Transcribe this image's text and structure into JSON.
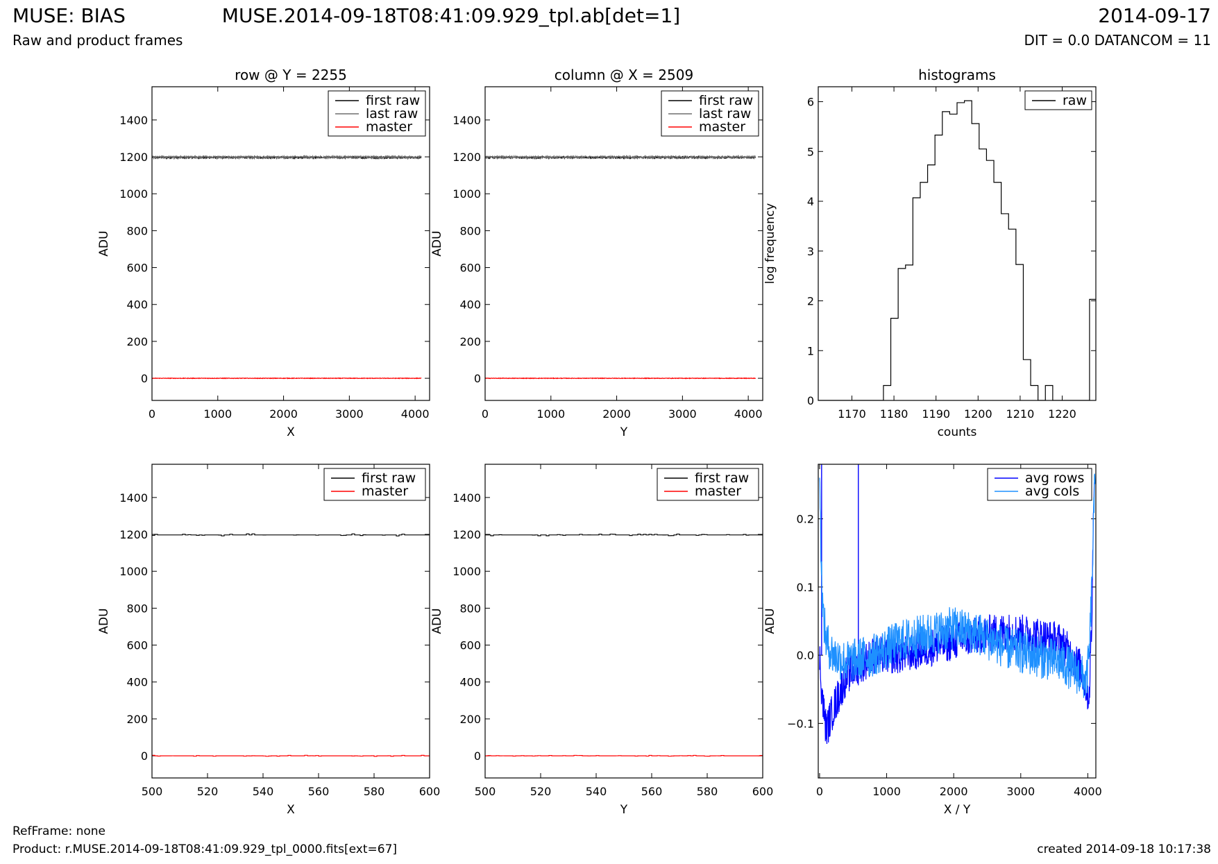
{
  "header": {
    "title": "MUSE: BIAS",
    "subtitle": "Raw and product frames",
    "center": "MUSE.2014-09-18T08:41:09.929_tpl.ab[det=1]",
    "date": "2014-09-17",
    "dit": "DIT = 0.0 DATANCOM = 11"
  },
  "footer": {
    "refframe": "RefFrame: none",
    "product": "Product: r.MUSE.2014-09-18T08:41:09.929_tpl_0000.fits[ext=67]",
    "created": "created 2014-09-18 10:17:38"
  },
  "colors": {
    "first_raw": "#000000",
    "last_raw": "#6e6e6e",
    "master": "#ff0000",
    "avg_rows": "#0000ff",
    "avg_cols": "#1e90ff"
  },
  "chart_data": [
    {
      "type": "line",
      "title": "row @ Y = 2255",
      "xlabel": "X",
      "ylabel": "ADU",
      "xlim": [
        0,
        4220
      ],
      "ylim": [
        -120,
        1580
      ],
      "xticks": [
        0,
        1000,
        2000,
        3000,
        4000
      ],
      "yticks": [
        0,
        200,
        400,
        600,
        800,
        1000,
        1200,
        1400
      ],
      "legend": "top-right",
      "series": [
        {
          "name": "first raw",
          "x": [
            0,
            4096
          ],
          "y": [
            1197,
            1197
          ],
          "color": "#000000",
          "noise": 5
        },
        {
          "name": "last raw",
          "x": [
            0,
            4096
          ],
          "y": [
            1199,
            1199
          ],
          "color": "#6e6e6e",
          "noise": 5
        },
        {
          "name": "master",
          "x": [
            0,
            4096
          ],
          "y": [
            0,
            0
          ],
          "color": "#ff0000",
          "noise": 1.5
        }
      ]
    },
    {
      "type": "line",
      "title": "column @ X = 2509",
      "xlabel": "Y",
      "ylabel": "ADU",
      "xlim": [
        0,
        4220
      ],
      "ylim": [
        -120,
        1580
      ],
      "xticks": [
        0,
        1000,
        2000,
        3000,
        4000
      ],
      "yticks": [
        0,
        200,
        400,
        600,
        800,
        1000,
        1200,
        1400
      ],
      "legend": "top-right",
      "series": [
        {
          "name": "first raw",
          "x": [
            0,
            4112
          ],
          "y": [
            1197,
            1197
          ],
          "color": "#000000",
          "noise": 5
        },
        {
          "name": "last raw",
          "x": [
            0,
            4112
          ],
          "y": [
            1199,
            1199
          ],
          "color": "#6e6e6e",
          "noise": 5
        },
        {
          "name": "master",
          "x": [
            0,
            4112
          ],
          "y": [
            0,
            0
          ],
          "color": "#ff0000",
          "noise": 1.5
        }
      ]
    },
    {
      "type": "step",
      "title": "histograms",
      "xlabel": "counts",
      "ylabel": "log frequency",
      "xlim": [
        1162,
        1228
      ],
      "ylim": [
        0,
        6.3
      ],
      "xticks": [
        1170,
        1180,
        1190,
        1200,
        1210,
        1220
      ],
      "yticks": [
        0,
        1,
        2,
        3,
        4,
        5,
        6
      ],
      "legend": "top-right",
      "series": [
        {
          "name": "raw",
          "color": "#000000",
          "edges": [
            1177.5,
            1179.25,
            1181,
            1182.75,
            1184.5,
            1186.25,
            1188,
            1189.75,
            1191.5,
            1193.25,
            1195,
            1196.75,
            1198.5,
            1200.25,
            1202,
            1203.75,
            1205.5,
            1207.25,
            1209,
            1210.75,
            1212.5,
            1214.25,
            1216,
            1217.75,
            1219.5,
            1221.25,
            1223,
            1224.75,
            1226.5,
            1228.25
          ],
          "values": [
            0.3,
            1.65,
            2.65,
            2.72,
            4.07,
            4.38,
            4.73,
            5.33,
            5.8,
            5.75,
            5.98,
            6.02,
            5.56,
            5.05,
            4.82,
            4.38,
            3.75,
            3.44,
            2.73,
            0.82,
            0.3,
            0,
            0.3,
            0,
            0,
            0,
            0,
            0,
            2.03
          ]
        }
      ]
    },
    {
      "type": "line",
      "xlabel": "X",
      "ylabel": "ADU",
      "xlim": [
        500,
        600
      ],
      "ylim": [
        -120,
        1580
      ],
      "xticks": [
        500,
        520,
        540,
        560,
        580,
        600
      ],
      "yticks": [
        0,
        200,
        400,
        600,
        800,
        1000,
        1200,
        1400
      ],
      "legend": "top-right",
      "series": [
        {
          "name": "first raw",
          "x": [
            500,
            600
          ],
          "y": [
            1197,
            1197
          ],
          "color": "#000000",
          "noise": 6,
          "stepped": true
        },
        {
          "name": "master",
          "x": [
            500,
            600
          ],
          "y": [
            0,
            0
          ],
          "color": "#ff0000",
          "noise": 3,
          "stepped": true
        }
      ]
    },
    {
      "type": "line",
      "xlabel": "Y",
      "ylabel": "ADU",
      "xlim": [
        500,
        600
      ],
      "ylim": [
        -120,
        1580
      ],
      "xticks": [
        500,
        520,
        540,
        560,
        580,
        600
      ],
      "yticks": [
        0,
        200,
        400,
        600,
        800,
        1000,
        1200,
        1400
      ],
      "legend": "top-right",
      "series": [
        {
          "name": "first raw",
          "x": [
            500,
            600
          ],
          "y": [
            1197,
            1197
          ],
          "color": "#000000",
          "noise": 5,
          "stepped": true
        },
        {
          "name": "master",
          "x": [
            500,
            600
          ],
          "y": [
            0,
            0
          ],
          "color": "#ff0000",
          "noise": 2.5,
          "stepped": true
        }
      ]
    },
    {
      "type": "line",
      "xlabel": "X / Y",
      "ylabel": "ADU",
      "xlim": [
        -20,
        4120
      ],
      "ylim": [
        -0.18,
        0.28
      ],
      "xticks": [
        0,
        1000,
        2000,
        3000,
        4000
      ],
      "yticks": [
        -0.1,
        0.0,
        0.1,
        0.2
      ],
      "ytick_labels": [
        "−0.1",
        "0.0",
        "0.1",
        "0.2"
      ],
      "legend": "top-right",
      "series": [
        {
          "name": "avg rows",
          "color": "#0000ff",
          "x": [
            0,
            30,
            60,
            100,
            200,
            400,
            800,
            1200,
            1600,
            2000,
            2400,
            2800,
            3200,
            3600,
            3900,
            3980,
            4020,
            4060,
            4096
          ],
          "y": [
            0.0,
            -0.05,
            -0.08,
            -0.11,
            -0.08,
            -0.03,
            0.0,
            0.0,
            0.01,
            0.02,
            0.03,
            0.035,
            0.03,
            0.02,
            -0.02,
            -0.05,
            -0.06,
            0.05,
            0.28
          ],
          "noise": 0.028,
          "spikes": [
            [
              578,
              0.28
            ],
            [
              30,
              0.28
            ]
          ]
        },
        {
          "name": "avg cols",
          "color": "#1e90ff",
          "x": [
            0,
            20,
            50,
            100,
            200,
            400,
            800,
            1200,
            1600,
            2000,
            2400,
            2800,
            3200,
            3600,
            3900,
            3980,
            4020,
            4060,
            4112
          ],
          "y": [
            0.28,
            0.15,
            0.06,
            0.02,
            0.0,
            -0.01,
            0.0,
            0.02,
            0.03,
            0.04,
            0.03,
            0.01,
            0.0,
            -0.01,
            -0.03,
            -0.04,
            0.0,
            0.1,
            0.28
          ],
          "noise": 0.032
        }
      ]
    }
  ]
}
